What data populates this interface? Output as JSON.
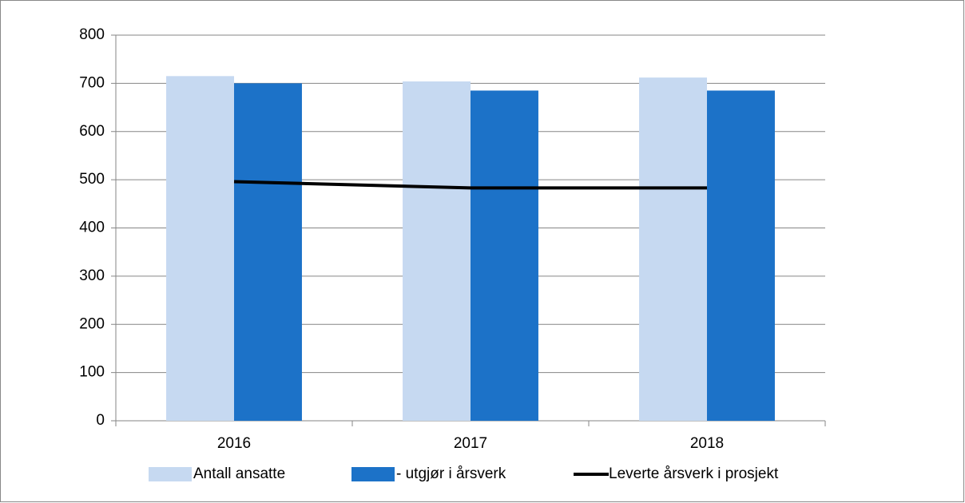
{
  "chart_data": {
    "type": "bar",
    "categories": [
      "2016",
      "2017",
      "2018"
    ],
    "series": [
      {
        "name": "Antall ansatte",
        "color": "#c6d9f1",
        "values": [
          715,
          704,
          712
        ]
      },
      {
        "name": "- utgjør i årsverk",
        "color": "#1c72c8",
        "values": [
          700,
          685,
          685
        ]
      },
      {
        "name": "Leverte årsverk i prosjekt",
        "color": "#000000",
        "type": "line",
        "values": [
          496,
          483,
          483
        ]
      }
    ],
    "ylim": [
      0,
      800
    ],
    "yticks": [
      0,
      100,
      200,
      300,
      400,
      500,
      600,
      700,
      800
    ],
    "grid": true,
    "legend": "bottom"
  }
}
